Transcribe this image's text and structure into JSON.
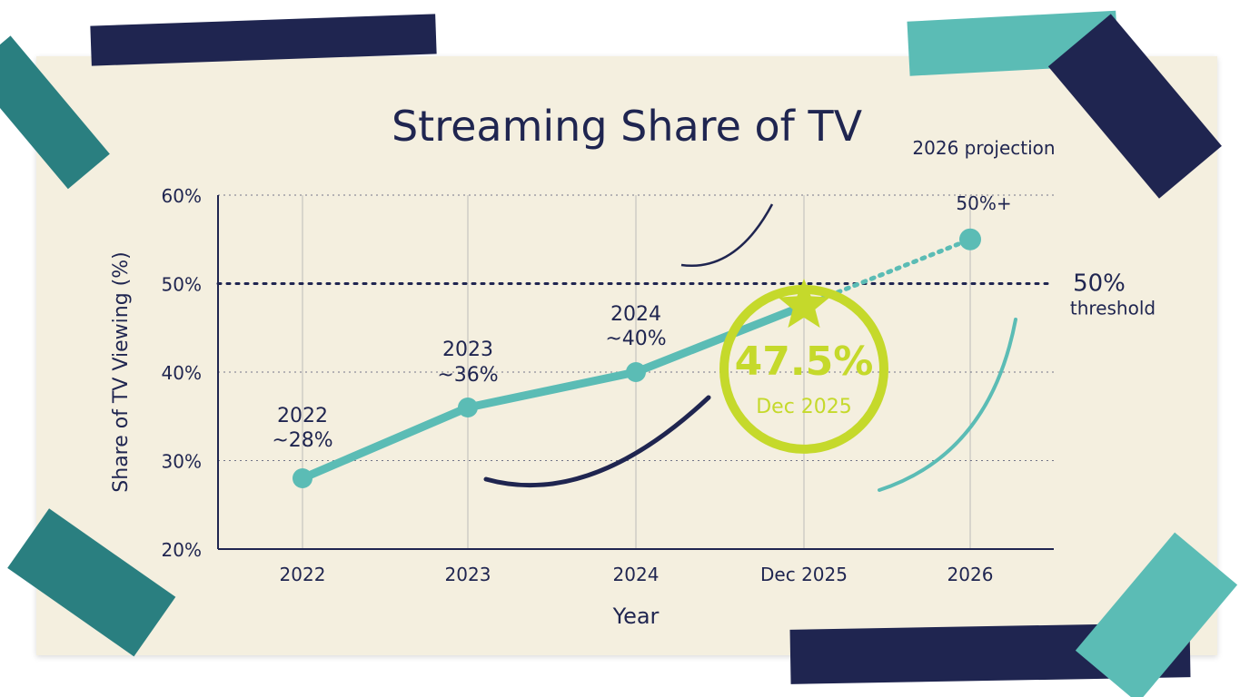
{
  "chart_data": {
    "type": "line",
    "title": "Streaming Share of TV",
    "xlabel": "Year",
    "ylabel": "Share of TV Viewing (%)",
    "ylim": [
      20,
      60
    ],
    "yticks": [
      "20%",
      "30%",
      "40%",
      "50%",
      "60%"
    ],
    "categories": [
      "2022",
      "2023",
      "2024",
      "Dec 2025",
      "2026"
    ],
    "values": [
      28,
      36,
      40,
      47.5,
      55
    ],
    "projection_from_index": 3,
    "point_labels": [
      {
        "year": "2022",
        "value": "~28%"
      },
      {
        "year": "2023",
        "value": "~36%"
      },
      {
        "year": "2024",
        "value": "~40%"
      },
      {
        "year": "47.5%",
        "value": "Dec 2025"
      },
      {
        "year": "2026 projection",
        "value": "50%+"
      }
    ],
    "threshold": {
      "value": 50,
      "label": "50%",
      "sublabel": "threshold"
    },
    "grid": true,
    "colors": {
      "line": "#5bbcb5",
      "highlight": "#c5d92b",
      "ink": "#1f2550",
      "paper": "#f4efdf"
    }
  }
}
